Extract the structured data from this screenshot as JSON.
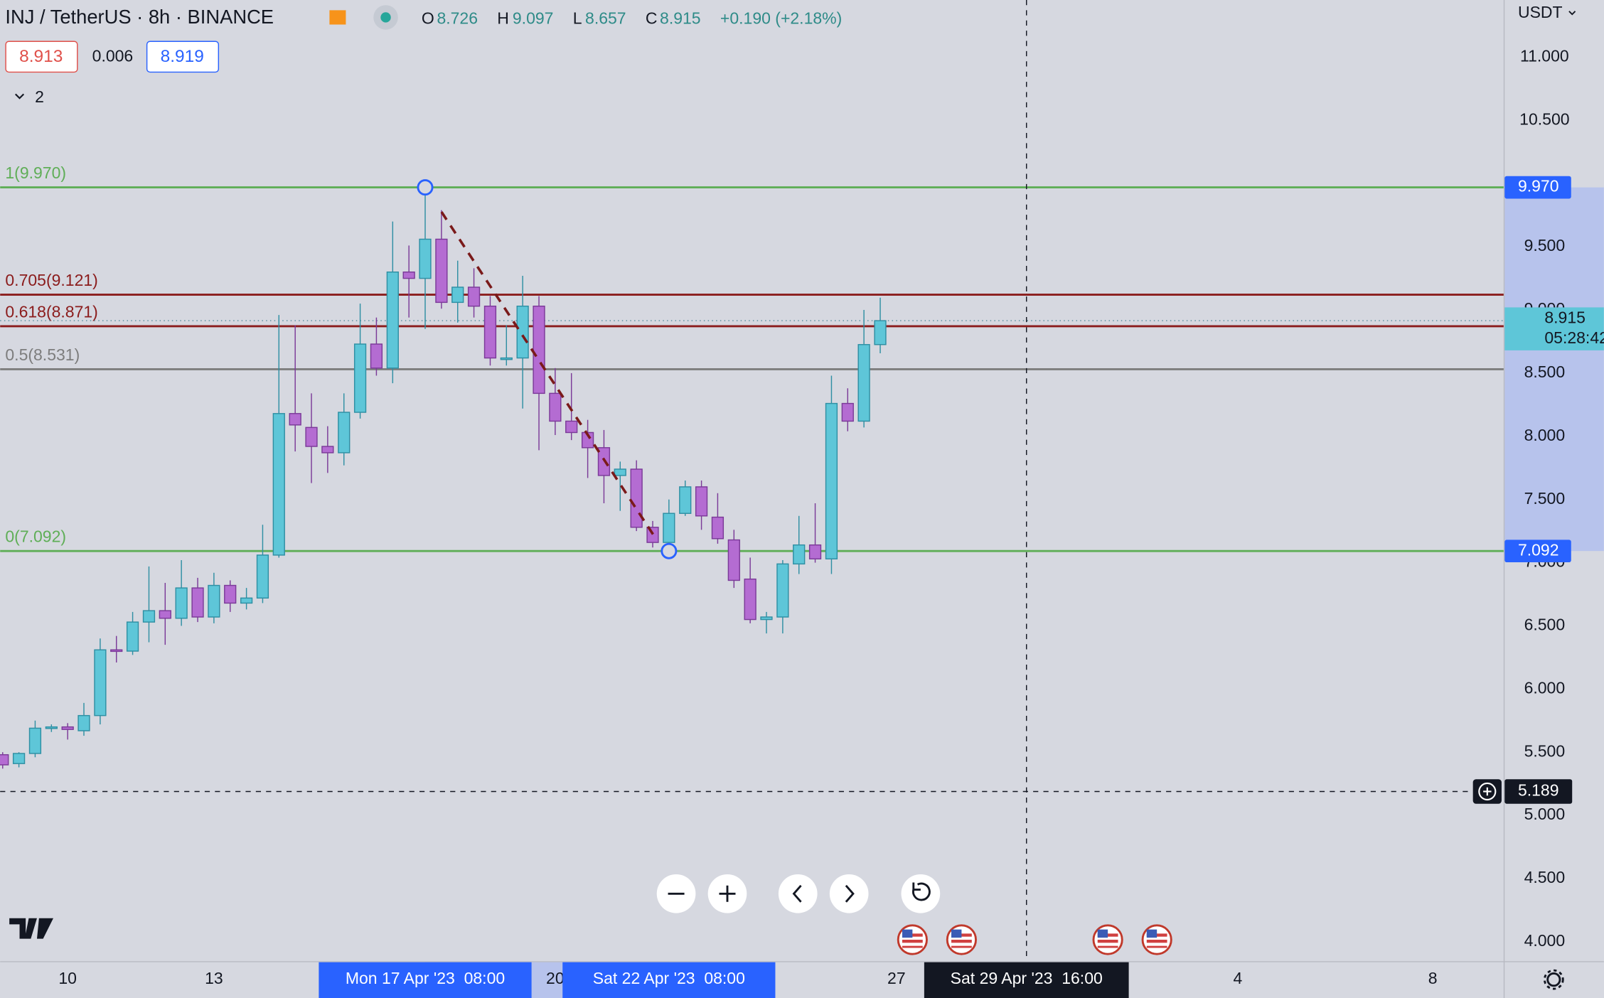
{
  "header": {
    "ohlc_labels": [
      "O",
      "H",
      "L",
      "C"
    ],
    "change": "+0.190 (+2.18%)",
    "bid": 8.913,
    "spread": 0.006,
    "ask": 8.919,
    "indicators": 2,
    "currency": "USDT",
    "countdown": "05:28:42"
  },
  "chart_data": {
    "type": "candlestick",
    "title": "INJ / TetherUS · 8h · BINANCE",
    "up_color": "#5ec6d8",
    "down_color": "#b46cd2",
    "x": [
      8.667,
      9,
      9.333,
      9.667,
      10,
      10.333,
      10.667,
      11,
      11.333,
      11.667,
      12,
      12.333,
      12.667,
      13,
      13.333,
      13.667,
      14,
      14.333,
      14.667,
      15,
      15.333,
      15.667,
      16,
      16.333,
      16.667,
      17,
      17.333,
      17.667,
      18,
      18.333,
      18.667,
      19,
      19.333,
      19.667,
      20,
      20.333,
      20.667,
      21,
      21.333,
      21.667,
      22,
      22.333,
      22.667,
      23,
      23.333,
      23.667,
      24,
      24.333,
      24.667,
      25,
      25.333,
      25.667,
      26,
      26.333,
      26.667
    ],
    "open": [
      5.48,
      5.41,
      5.49,
      5.69,
      5.7,
      5.67,
      5.79,
      6.31,
      6.3,
      6.53,
      6.62,
      6.56,
      6.8,
      6.57,
      6.82,
      6.68,
      6.72,
      7.06,
      8.18,
      8.07,
      7.92,
      7.87,
      8.19,
      8.73,
      8.54,
      9.3,
      9.25,
      9.56,
      9.06,
      9.18,
      9.03,
      8.61,
      8.62,
      9.03,
      8.34,
      8.12,
      8.03,
      7.91,
      7.69,
      7.74,
      7.28,
      7.16,
      7.39,
      7.6,
      7.36,
      7.18,
      6.87,
      6.55,
      6.57,
      6.99,
      7.14,
      7.03,
      8.26,
      8.12,
      8.726
    ],
    "high": [
      5.5,
      5.5,
      5.75,
      5.72,
      5.73,
      5.89,
      6.4,
      6.42,
      6.61,
      6.97,
      6.84,
      7.02,
      6.88,
      6.92,
      6.86,
      6.8,
      7.3,
      8.96,
      8.88,
      8.34,
      8.08,
      8.34,
      9.05,
      8.94,
      9.7,
      9.51,
      9.92,
      9.79,
      9.39,
      9.33,
      9.11,
      8.88,
      9.27,
      9.11,
      8.54,
      8.5,
      8.13,
      8.05,
      7.8,
      7.81,
      7.33,
      7.5,
      7.65,
      7.65,
      7.55,
      7.26,
      7.04,
      6.61,
      7.02,
      7.37,
      7.47,
      8.48,
      8.38,
      9.0,
      9.097
    ],
    "low": [
      5.37,
      5.38,
      5.46,
      5.66,
      5.6,
      5.63,
      5.72,
      6.21,
      6.27,
      6.37,
      6.35,
      6.5,
      6.53,
      6.52,
      6.61,
      6.63,
      6.68,
      7.04,
      7.88,
      7.63,
      7.71,
      7.77,
      8.14,
      8.48,
      8.42,
      8.94,
      8.85,
      9.01,
      8.9,
      8.94,
      8.56,
      8.56,
      8.22,
      7.89,
      8.01,
      7.97,
      7.67,
      7.47,
      7.41,
      7.25,
      7.12,
      7.08,
      7.37,
      7.26,
      7.15,
      6.8,
      6.52,
      6.44,
      6.44,
      6.91,
      7.0,
      6.91,
      8.04,
      8.07,
      8.657
    ],
    "close": [
      5.4,
      5.49,
      5.69,
      5.7,
      5.68,
      5.79,
      6.31,
      6.3,
      6.53,
      6.62,
      6.56,
      6.8,
      6.57,
      6.82,
      6.68,
      6.72,
      7.06,
      8.18,
      8.09,
      7.92,
      7.87,
      8.19,
      8.73,
      8.54,
      9.3,
      9.25,
      9.56,
      9.06,
      9.18,
      9.03,
      8.62,
      8.62,
      9.03,
      8.34,
      8.12,
      8.03,
      7.91,
      7.69,
      7.74,
      7.28,
      7.16,
      7.39,
      7.6,
      7.37,
      7.19,
      6.86,
      6.55,
      6.57,
      6.99,
      7.14,
      7.03,
      8.26,
      8.12,
      8.726,
      8.915
    ],
    "xlim": [
      8.615,
      39.454
    ],
    "xticks": [
      10,
      13,
      20,
      27,
      {
        "value": 34,
        "label": "4"
      },
      {
        "value": 38,
        "label": "8"
      }
    ],
    "ylim": [
      3.846,
      11.453
    ],
    "yticks": [
      {
        "value": 4,
        "label": "4.000"
      },
      {
        "value": 4.5,
        "label": "4.500"
      },
      {
        "value": 5,
        "label": "5.000"
      },
      {
        "value": 5.5,
        "label": "5.500"
      },
      {
        "value": 6,
        "label": "6.000"
      },
      {
        "value": 6.5,
        "label": "6.500"
      },
      {
        "value": 7,
        "label": "7.000"
      },
      {
        "value": 7.5,
        "label": "7.500"
      },
      {
        "value": 8,
        "label": "8.000"
      },
      {
        "value": 8.5,
        "label": "8.500"
      },
      {
        "value": 9,
        "label": "9.000"
      },
      {
        "value": 9.5,
        "label": "9.500"
      },
      {
        "value": 10.5,
        "label": "10.500"
      },
      {
        "value": 11,
        "label": "11.000"
      }
    ],
    "grid": false,
    "fib_levels": [
      {
        "label": "1(9.970)",
        "value": 9.97,
        "tag": "9.970",
        "color": "#5fae57"
      },
      {
        "label": "0.705(9.121)",
        "value": 9.121,
        "color": "#8b1c1c"
      },
      {
        "label": "0.618(8.871)",
        "value": 8.871,
        "color": "#8b1c1c"
      },
      {
        "label": "0.5(8.531)",
        "value": 8.531,
        "color": "#7d7d7d"
      },
      {
        "label": "0(7.092)",
        "value": 7.092,
        "tag": "7.092",
        "color": "#5fae57"
      }
    ],
    "x_highlights": [
      {
        "value": 17.333,
        "label": "Mon 17 Apr '23  08:00"
      },
      {
        "value": 22.333,
        "label": "Sat 22 Apr '23  08:00"
      }
    ],
    "crosshair": {
      "x": 29.667,
      "x_label": "Sat 29 Apr '23  16:00",
      "y": 5.189
    }
  }
}
